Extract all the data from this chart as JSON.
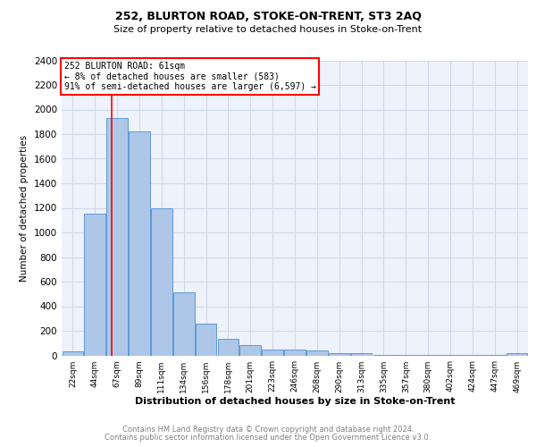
{
  "title1": "252, BLURTON ROAD, STOKE-ON-TRENT, ST3 2AQ",
  "title2": "Size of property relative to detached houses in Stoke-on-Trent",
  "xlabel": "Distribution of detached houses by size in Stoke-on-Trent",
  "ylabel": "Number of detached properties",
  "footer1": "Contains HM Land Registry data © Crown copyright and database right 2024.",
  "footer2": "Contains public sector information licensed under the Open Government Licence v3.0.",
  "annotation_line1": "252 BLURTON ROAD: 61sqm",
  "annotation_line2": "← 8% of detached houses are smaller (583)",
  "annotation_line3": "91% of semi-detached houses are larger (6,597) →",
  "bar_color": "#aec6e8",
  "bar_edge_color": "#5b9bd5",
  "red_line_bin": 1.5,
  "categories": [
    "22sqm",
    "44sqm",
    "67sqm",
    "89sqm",
    "111sqm",
    "134sqm",
    "156sqm",
    "178sqm",
    "201sqm",
    "223sqm",
    "246sqm",
    "268sqm",
    "290sqm",
    "313sqm",
    "335sqm",
    "357sqm",
    "380sqm",
    "402sqm",
    "424sqm",
    "447sqm",
    "469sqm"
  ],
  "values": [
    30,
    1150,
    1930,
    1825,
    1200,
    510,
    255,
    135,
    85,
    50,
    45,
    40,
    20,
    15,
    5,
    5,
    5,
    5,
    5,
    5,
    20
  ],
  "ylim": [
    0,
    2400
  ],
  "yticks": [
    0,
    200,
    400,
    600,
    800,
    1000,
    1200,
    1400,
    1600,
    1800,
    2000,
    2200,
    2400
  ],
  "grid_color": "#d0d8e8",
  "background_color": "#eef2fa"
}
